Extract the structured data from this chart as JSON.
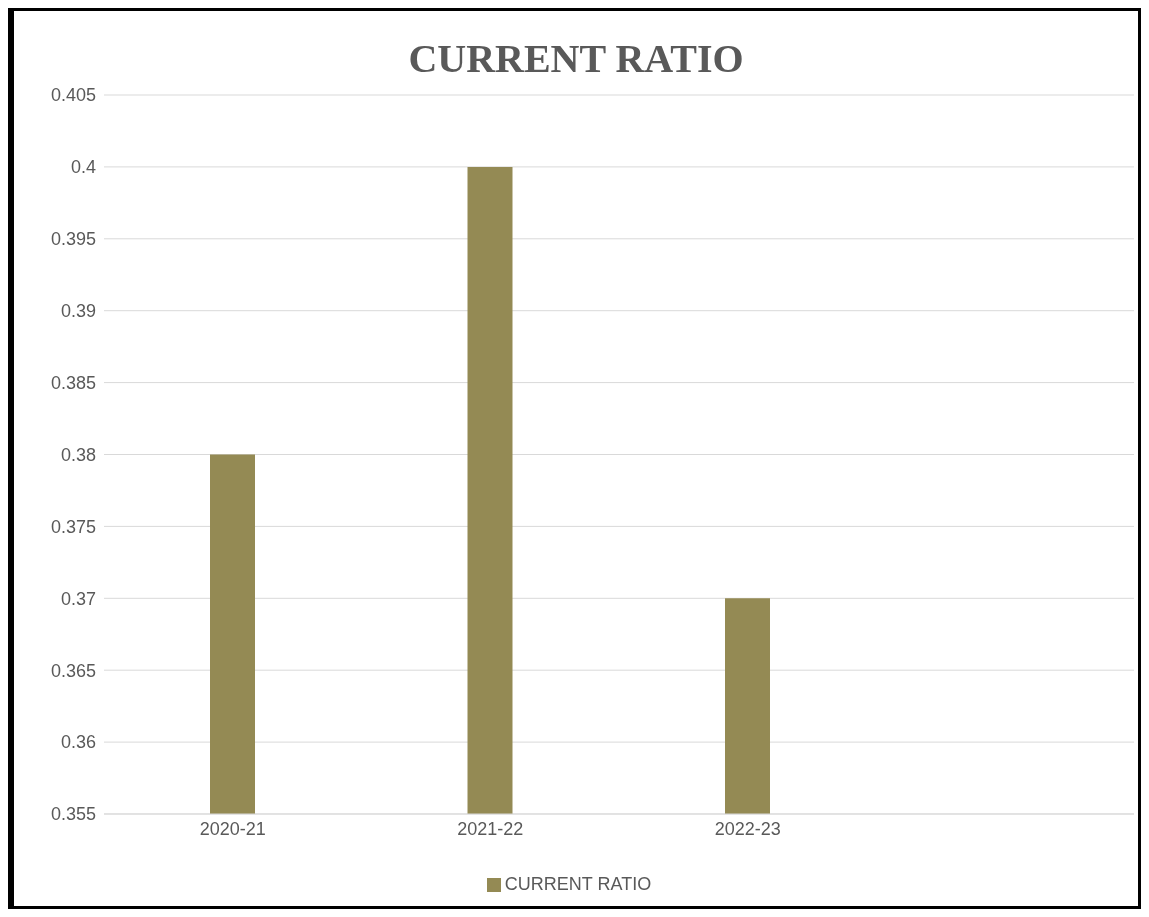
{
  "chart_data": {
    "type": "bar",
    "title": "CURRENT RATIO",
    "categories": [
      "2020-21",
      "2021-22",
      "2022-23",
      null
    ],
    "series": [
      {
        "name": "CURRENT RATIO",
        "color": "#948a54",
        "values": [
          0.38,
          0.4,
          0.37,
          null
        ]
      }
    ],
    "ylim": [
      0.355,
      0.405
    ],
    "yticks": [
      0.355,
      0.36,
      0.365,
      0.37,
      0.375,
      0.38,
      0.385,
      0.39,
      0.395,
      0.4,
      0.405
    ],
    "grid": "y",
    "legend": "bottom"
  }
}
